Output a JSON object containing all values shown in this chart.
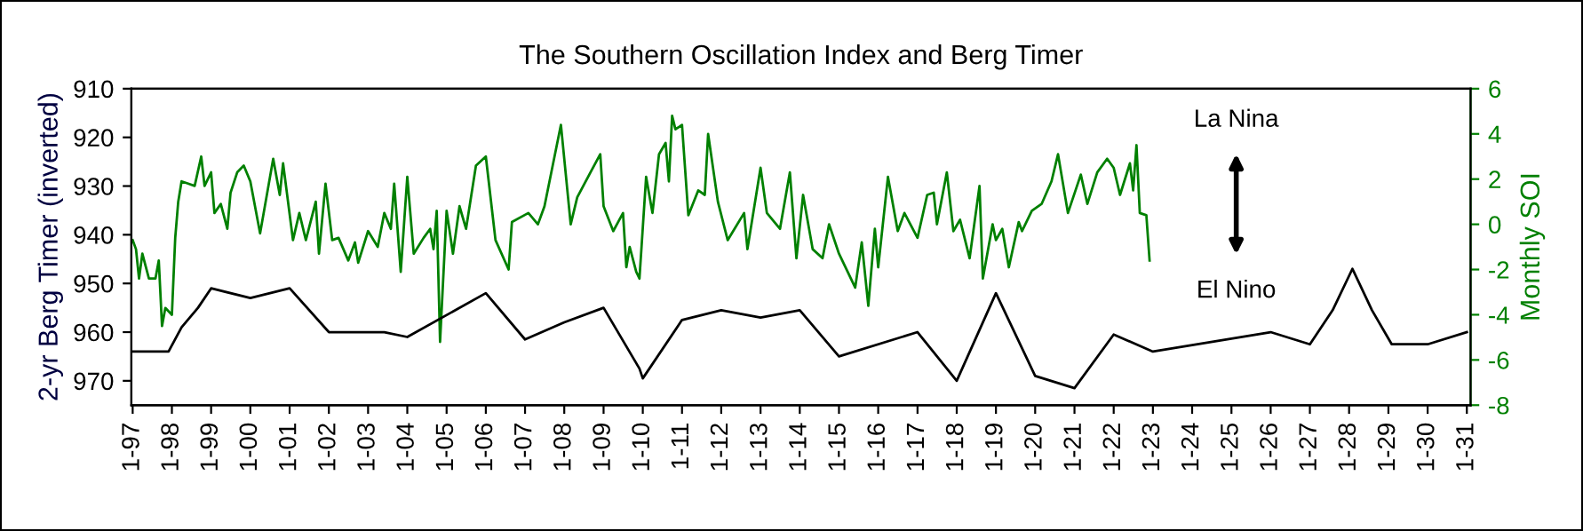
{
  "chart_data": {
    "type": "line",
    "title": "The Southern Oscillation Index and Berg Timer",
    "ylabel": "2-yr Berg Timer (inverted)",
    "y2label": "Monthly SOI",
    "annotations": [
      "La Nina",
      "El Nino"
    ],
    "xlim": [
      "1996-12-20",
      "2031-02-05"
    ],
    "xticks": [
      {
        "value": "1997-01",
        "label": "1-97"
      },
      {
        "value": "1998-01",
        "label": "1-98"
      },
      {
        "value": "1999-01",
        "label": "1-99"
      },
      {
        "value": "2000-01",
        "label": "1-00"
      },
      {
        "value": "2001-01",
        "label": "1-01"
      },
      {
        "value": "2002-01",
        "label": "1-02"
      },
      {
        "value": "2003-01",
        "label": "1-03"
      },
      {
        "value": "2004-01",
        "label": "1-04"
      },
      {
        "value": "2005-01",
        "label": "1-05"
      },
      {
        "value": "2006-01",
        "label": "1-06"
      },
      {
        "value": "2007-01",
        "label": "1-07"
      },
      {
        "value": "2008-01",
        "label": "1-08"
      },
      {
        "value": "2009-01",
        "label": "1-09"
      },
      {
        "value": "2010-01",
        "label": "1-10"
      },
      {
        "value": "2011-01",
        "label": "1-11"
      },
      {
        "value": "2012-01",
        "label": "1-12"
      },
      {
        "value": "2013-01",
        "label": "1-13"
      },
      {
        "value": "2014-01",
        "label": "1-14"
      },
      {
        "value": "2015-01",
        "label": "1-15"
      },
      {
        "value": "2016-01",
        "label": "1-16"
      },
      {
        "value": "2017-01",
        "label": "1-17"
      },
      {
        "value": "2018-01",
        "label": "1-18"
      },
      {
        "value": "2019-01",
        "label": "1-19"
      },
      {
        "value": "2020-01",
        "label": "1-20"
      },
      {
        "value": "2021-01",
        "label": "1-21"
      },
      {
        "value": "2022-01",
        "label": "1-22"
      },
      {
        "value": "2023-01",
        "label": "1-23"
      },
      {
        "value": "2024-01",
        "label": "1-24"
      },
      {
        "value": "2025-01",
        "label": "1-25"
      },
      {
        "value": "2026-01",
        "label": "1-26"
      },
      {
        "value": "2027-01",
        "label": "1-27"
      },
      {
        "value": "2028-01",
        "label": "1-28"
      },
      {
        "value": "2029-01",
        "label": "1-29"
      },
      {
        "value": "2030-01",
        "label": "1-30"
      },
      {
        "value": "2031-01",
        "label": "1-31"
      }
    ],
    "ylim": [
      975,
      910
    ],
    "yticks": [
      910,
      920,
      930,
      940,
      950,
      960,
      970
    ],
    "y2lim": [
      -8,
      6
    ],
    "y2ticks": [
      -8,
      -6,
      -4,
      -2,
      0,
      2,
      4,
      6
    ],
    "grid": false,
    "legend": false,
    "marker": "none",
    "line_style": "solid",
    "series": [
      {
        "color": "#000000",
        "x": [
          "1997-01",
          "1997-12",
          "1998-04",
          "1998-09",
          "1999-01",
          "2000-01",
          "2001-01",
          "2002-01",
          "2003-06",
          "2004-01",
          "2006-01",
          "2007-01",
          "2008-01",
          "2009-01",
          "2009-12",
          "2010-01",
          "2011-01",
          "2012-01",
          "2013-01",
          "2014-01",
          "2015-01",
          "2017-01",
          "2018-01",
          "2019-01",
          "2020-01",
          "2021-01",
          "2022-01",
          "2023-01",
          "2026-01",
          "2027-01",
          "2027-08",
          "2028-02",
          "2028-08",
          "2029-02",
          "2030-01",
          "2031-01"
        ],
        "values": [
          964,
          964,
          959,
          955,
          951,
          953,
          951,
          960,
          960,
          961,
          952,
          961.5,
          958,
          955,
          967.5,
          969.5,
          957.5,
          955.5,
          957,
          955.5,
          965,
          960,
          970,
          952,
          969,
          971.5,
          960.5,
          964,
          960,
          962.5,
          955.5,
          947,
          955.5,
          962.5,
          962.5,
          960
        ]
      },
      {
        "color": "#008000",
        "axis": "y2",
        "x": [
          "1997-01",
          "1997-02",
          "1997-03",
          "1997-04",
          "1997-06",
          "1997-08",
          "1997-09",
          "1997-10",
          "1997-11",
          "1998-01",
          "1998-02",
          "1998-03",
          "1998-04",
          "1998-06",
          "1998-08",
          "1998-10",
          "1998-11",
          "1999-01",
          "1999-02",
          "1999-04",
          "1999-06",
          "1999-07",
          "1999-09",
          "1999-11",
          "2000-01",
          "2000-04",
          "2000-08",
          "2000-10",
          "2000-11",
          "2001-02",
          "2001-04",
          "2001-06",
          "2001-09",
          "2001-10",
          "2001-12",
          "2002-02",
          "2002-04",
          "2002-07",
          "2002-09",
          "2002-10",
          "2003-01",
          "2003-04",
          "2003-06",
          "2003-08",
          "2003-09",
          "2003-11",
          "2004-01",
          "2004-03",
          "2004-06",
          "2004-08",
          "2004-09",
          "2004-10",
          "2004-11",
          "2005-01",
          "2005-03",
          "2005-05",
          "2005-07",
          "2005-10",
          "2006-01",
          "2006-04",
          "2006-08",
          "2006-09",
          "2007-02",
          "2007-05",
          "2007-07",
          "2007-12",
          "2008-03",
          "2008-05",
          "2008-09",
          "2008-12",
          "2009-01",
          "2009-04",
          "2009-07",
          "2009-08",
          "2009-09",
          "2009-11",
          "2009-12",
          "2010-02",
          "2010-04",
          "2010-06",
          "2010-08",
          "2010-09",
          "2010-10",
          "2010-11",
          "2011-01",
          "2011-03",
          "2011-06",
          "2011-08",
          "2011-09",
          "2011-12",
          "2012-03",
          "2012-08",
          "2012-09",
          "2013-01",
          "2013-03",
          "2013-07",
          "2013-10",
          "2013-12",
          "2014-02",
          "2014-05",
          "2014-08",
          "2014-10",
          "2015-01",
          "2015-06",
          "2015-08",
          "2015-10",
          "2015-12",
          "2016-01",
          "2016-04",
          "2016-07",
          "2016-09",
          "2017-01",
          "2017-04",
          "2017-06",
          "2017-07",
          "2017-10",
          "2017-12",
          "2018-02",
          "2018-05",
          "2018-08",
          "2018-09",
          "2018-12",
          "2019-01",
          "2019-03",
          "2019-05",
          "2019-08",
          "2019-09",
          "2019-12",
          "2020-03",
          "2020-06",
          "2020-08",
          "2020-11",
          "2021-03",
          "2021-05",
          "2021-08",
          "2021-11",
          "2022-01",
          "2022-03",
          "2022-06",
          "2022-07",
          "2022-08",
          "2022-09",
          "2022-11",
          "2022-12"
        ],
        "values": [
          -0.7,
          -1.1,
          -2.4,
          -1.3,
          -2.4,
          -2.4,
          -1.6,
          -4.5,
          -3.7,
          -4.0,
          -0.6,
          1.0,
          1.9,
          1.8,
          1.7,
          3.0,
          1.7,
          2.3,
          0.5,
          0.9,
          -0.2,
          1.4,
          2.3,
          2.6,
          1.9,
          -0.4,
          2.9,
          1.3,
          2.7,
          -0.7,
          0.5,
          -0.7,
          1.0,
          -1.3,
          1.8,
          -0.7,
          -0.6,
          -1.6,
          -0.8,
          -1.7,
          -0.3,
          -1.0,
          0.5,
          -0.2,
          1.8,
          -2.1,
          2.1,
          -1.3,
          -0.6,
          -0.2,
          -1.1,
          0.6,
          -5.2,
          0.6,
          -1.3,
          0.8,
          -0.2,
          2.6,
          3.0,
          -0.7,
          -2.0,
          0.1,
          0.5,
          0.0,
          0.8,
          4.4,
          0.0,
          1.2,
          2.3,
          3.1,
          0.8,
          -0.3,
          0.5,
          -1.9,
          -1.0,
          -2.1,
          -2.4,
          2.1,
          0.5,
          3.1,
          3.6,
          1.9,
          4.8,
          4.2,
          4.4,
          0.4,
          1.5,
          1.3,
          4.0,
          1.0,
          -0.7,
          0.5,
          -1.1,
          2.5,
          0.5,
          -0.2,
          2.3,
          -1.5,
          1.3,
          -1.1,
          -1.5,
          0.0,
          -1.3,
          -2.8,
          -0.8,
          -3.6,
          -0.2,
          -1.9,
          2.1,
          -0.3,
          0.5,
          -0.6,
          1.3,
          1.4,
          0.0,
          2.3,
          -0.3,
          0.2,
          -1.5,
          1.7,
          -2.4,
          0.0,
          -0.7,
          -0.2,
          -1.9,
          0.1,
          -0.3,
          0.6,
          0.9,
          1.9,
          3.1,
          0.5,
          2.2,
          0.9,
          2.3,
          2.9,
          2.5,
          1.3,
          2.7,
          1.5,
          3.5,
          0.5,
          0.4,
          -1.6
        ]
      }
    ]
  }
}
